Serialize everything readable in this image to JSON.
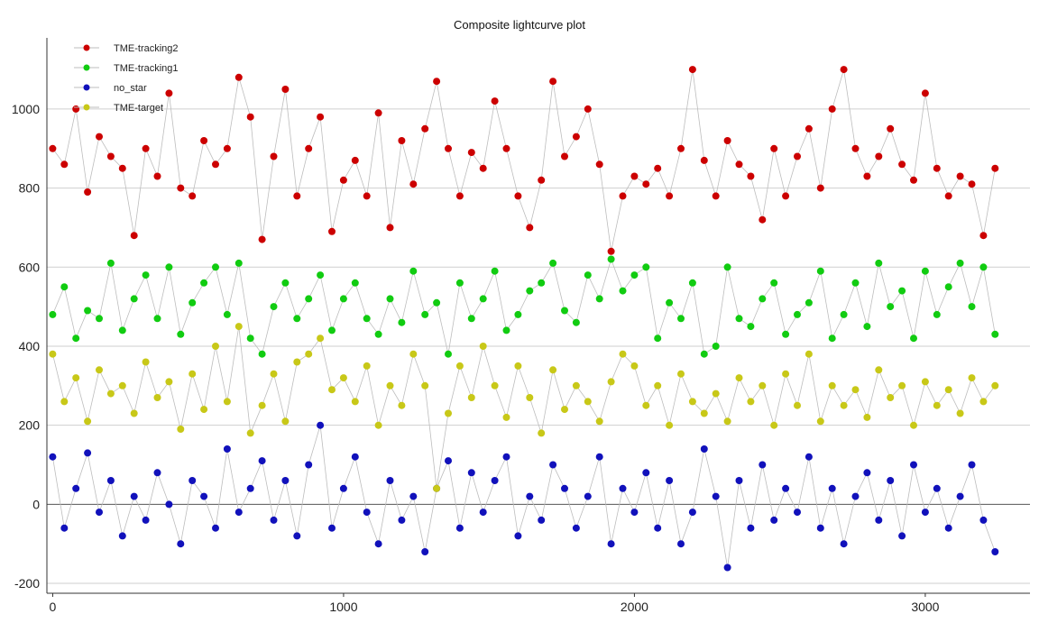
{
  "chart_data": {
    "type": "scatter",
    "title": "Composite lightcurve plot",
    "xlabel": "",
    "ylabel": "",
    "xlim": [
      -20,
      3360
    ],
    "ylim": [
      -225,
      1180
    ],
    "xticks": [
      0,
      1000,
      2000,
      3000
    ],
    "yticks": [
      -200,
      0,
      200,
      400,
      600,
      800,
      1000
    ],
    "grid": "horizontal",
    "legend_position": "top-left",
    "series": [
      {
        "name": "TME-tracking2",
        "color": "#cc0000",
        "x": [
          0,
          40,
          80,
          120,
          160,
          200,
          240,
          280,
          320,
          360,
          400,
          440,
          480,
          520,
          560,
          600,
          640,
          680,
          720,
          760,
          800,
          840,
          880,
          920,
          960,
          1000,
          1040,
          1080,
          1120,
          1160,
          1200,
          1240,
          1280,
          1320,
          1360,
          1400,
          1440,
          1480,
          1520,
          1560,
          1600,
          1640,
          1680,
          1720,
          1760,
          1800,
          1840,
          1880,
          1920,
          1960,
          2000,
          2040,
          2080,
          2120,
          2160,
          2200,
          2240,
          2280,
          2320,
          2360,
          2400,
          2440,
          2480,
          2520,
          2560,
          2600,
          2640,
          2680,
          2720,
          2760,
          2800,
          2840,
          2880,
          2920,
          2960,
          3000,
          3040,
          3080,
          3120,
          3160,
          3200,
          3240
        ],
        "y": [
          900,
          860,
          1000,
          790,
          930,
          880,
          850,
          680,
          900,
          830,
          1040,
          800,
          780,
          920,
          860,
          900,
          1080,
          980,
          670,
          880,
          1050,
          780,
          900,
          980,
          690,
          820,
          870,
          780,
          990,
          700,
          920,
          810,
          950,
          1070,
          900,
          780,
          890,
          850,
          1020,
          900,
          780,
          700,
          820,
          1070,
          880,
          930,
          1000,
          860,
          640,
          780,
          830,
          810,
          850,
          780,
          900,
          1100,
          870,
          780,
          920,
          860,
          830,
          720,
          900,
          780,
          880,
          950,
          800,
          1000,
          1100,
          900,
          830,
          880,
          950,
          860,
          820,
          1040,
          850,
          780,
          830,
          810,
          680,
          850
        ]
      },
      {
        "name": "TME-tracking1",
        "color": "#11cc11",
        "x": [
          0,
          40,
          80,
          120,
          160,
          200,
          240,
          280,
          320,
          360,
          400,
          440,
          480,
          520,
          560,
          600,
          640,
          680,
          720,
          760,
          800,
          840,
          880,
          920,
          960,
          1000,
          1040,
          1080,
          1120,
          1160,
          1200,
          1240,
          1280,
          1320,
          1360,
          1400,
          1440,
          1480,
          1520,
          1560,
          1600,
          1640,
          1680,
          1720,
          1760,
          1800,
          1840,
          1880,
          1920,
          1960,
          2000,
          2040,
          2080,
          2120,
          2160,
          2200,
          2240,
          2280,
          2320,
          2360,
          2400,
          2440,
          2480,
          2520,
          2560,
          2600,
          2640,
          2680,
          2720,
          2760,
          2800,
          2840,
          2880,
          2920,
          2960,
          3000,
          3040,
          3080,
          3120,
          3160,
          3200,
          3240
        ],
        "y": [
          480,
          550,
          420,
          490,
          470,
          610,
          440,
          520,
          580,
          470,
          600,
          430,
          510,
          560,
          600,
          480,
          610,
          420,
          380,
          500,
          560,
          470,
          520,
          580,
          440,
          520,
          560,
          470,
          430,
          520,
          460,
          590,
          480,
          510,
          380,
          560,
          470,
          520,
          590,
          440,
          480,
          540,
          560,
          610,
          490,
          460,
          580,
          520,
          620,
          540,
          580,
          600,
          420,
          510,
          470,
          560,
          380,
          400,
          600,
          470,
          450,
          520,
          560,
          430,
          480,
          510,
          590,
          420,
          480,
          560,
          450,
          610,
          500,
          540,
          420,
          590,
          480,
          550,
          610,
          500,
          600,
          430
        ]
      },
      {
        "name": "no_star",
        "color": "#1111bb",
        "x": [
          0,
          40,
          80,
          120,
          160,
          200,
          240,
          280,
          320,
          360,
          400,
          440,
          480,
          520,
          560,
          600,
          640,
          680,
          720,
          760,
          800,
          840,
          880,
          920,
          960,
          1000,
          1040,
          1080,
          1120,
          1160,
          1200,
          1240,
          1280,
          1320,
          1360,
          1400,
          1440,
          1480,
          1520,
          1560,
          1600,
          1640,
          1680,
          1720,
          1760,
          1800,
          1840,
          1880,
          1920,
          1960,
          2000,
          2040,
          2080,
          2120,
          2160,
          2200,
          2240,
          2280,
          2320,
          2360,
          2400,
          2440,
          2480,
          2520,
          2560,
          2600,
          2640,
          2680,
          2720,
          2760,
          2800,
          2840,
          2880,
          2920,
          2960,
          3000,
          3040,
          3080,
          3120,
          3160,
          3200,
          3240
        ],
        "y": [
          120,
          -60,
          40,
          130,
          -20,
          60,
          -80,
          20,
          -40,
          80,
          0,
          -100,
          60,
          20,
          -60,
          140,
          -20,
          40,
          110,
          -40,
          60,
          -80,
          100,
          200,
          -60,
          40,
          120,
          -20,
          -100,
          60,
          -40,
          20,
          -120,
          40,
          110,
          -60,
          80,
          -20,
          60,
          120,
          -80,
          20,
          -40,
          100,
          40,
          -60,
          20,
          120,
          -100,
          40,
          -20,
          80,
          -60,
          60,
          -100,
          -20,
          140,
          20,
          -160,
          60,
          -60,
          100,
          -40,
          40,
          -20,
          120,
          -60,
          40,
          -100,
          20,
          80,
          -40,
          60,
          -80,
          100,
          -20,
          40,
          -60,
          20,
          100,
          -40,
          -120
        ]
      },
      {
        "name": "TME-target",
        "color": "#c8c818",
        "x": [
          0,
          40,
          80,
          120,
          160,
          200,
          240,
          280,
          320,
          360,
          400,
          440,
          480,
          520,
          560,
          600,
          640,
          680,
          720,
          760,
          800,
          840,
          880,
          920,
          960,
          1000,
          1040,
          1080,
          1120,
          1160,
          1200,
          1240,
          1280,
          1320,
          1360,
          1400,
          1440,
          1480,
          1520,
          1560,
          1600,
          1640,
          1680,
          1720,
          1760,
          1800,
          1840,
          1880,
          1920,
          1960,
          2000,
          2040,
          2080,
          2120,
          2160,
          2200,
          2240,
          2280,
          2320,
          2360,
          2400,
          2440,
          2480,
          2520,
          2560,
          2600,
          2640,
          2680,
          2720,
          2760,
          2800,
          2840,
          2880,
          2920,
          2960,
          3000,
          3040,
          3080,
          3120,
          3160,
          3200,
          3240
        ],
        "y": [
          380,
          260,
          320,
          210,
          340,
          280,
          300,
          230,
          360,
          270,
          310,
          190,
          330,
          240,
          400,
          260,
          450,
          180,
          250,
          330,
          210,
          360,
          380,
          420,
          290,
          320,
          260,
          350,
          200,
          300,
          250,
          380,
          300,
          40,
          230,
          350,
          270,
          400,
          300,
          220,
          350,
          270,
          180,
          340,
          240,
          300,
          260,
          210,
          310,
          380,
          350,
          250,
          300,
          200,
          330,
          260,
          230,
          280,
          210,
          320,
          260,
          300,
          200,
          330,
          250,
          380,
          210,
          300,
          250,
          290,
          220,
          340,
          270,
          300,
          200,
          310,
          250,
          290,
          230,
          320,
          260,
          300
        ]
      }
    ]
  }
}
